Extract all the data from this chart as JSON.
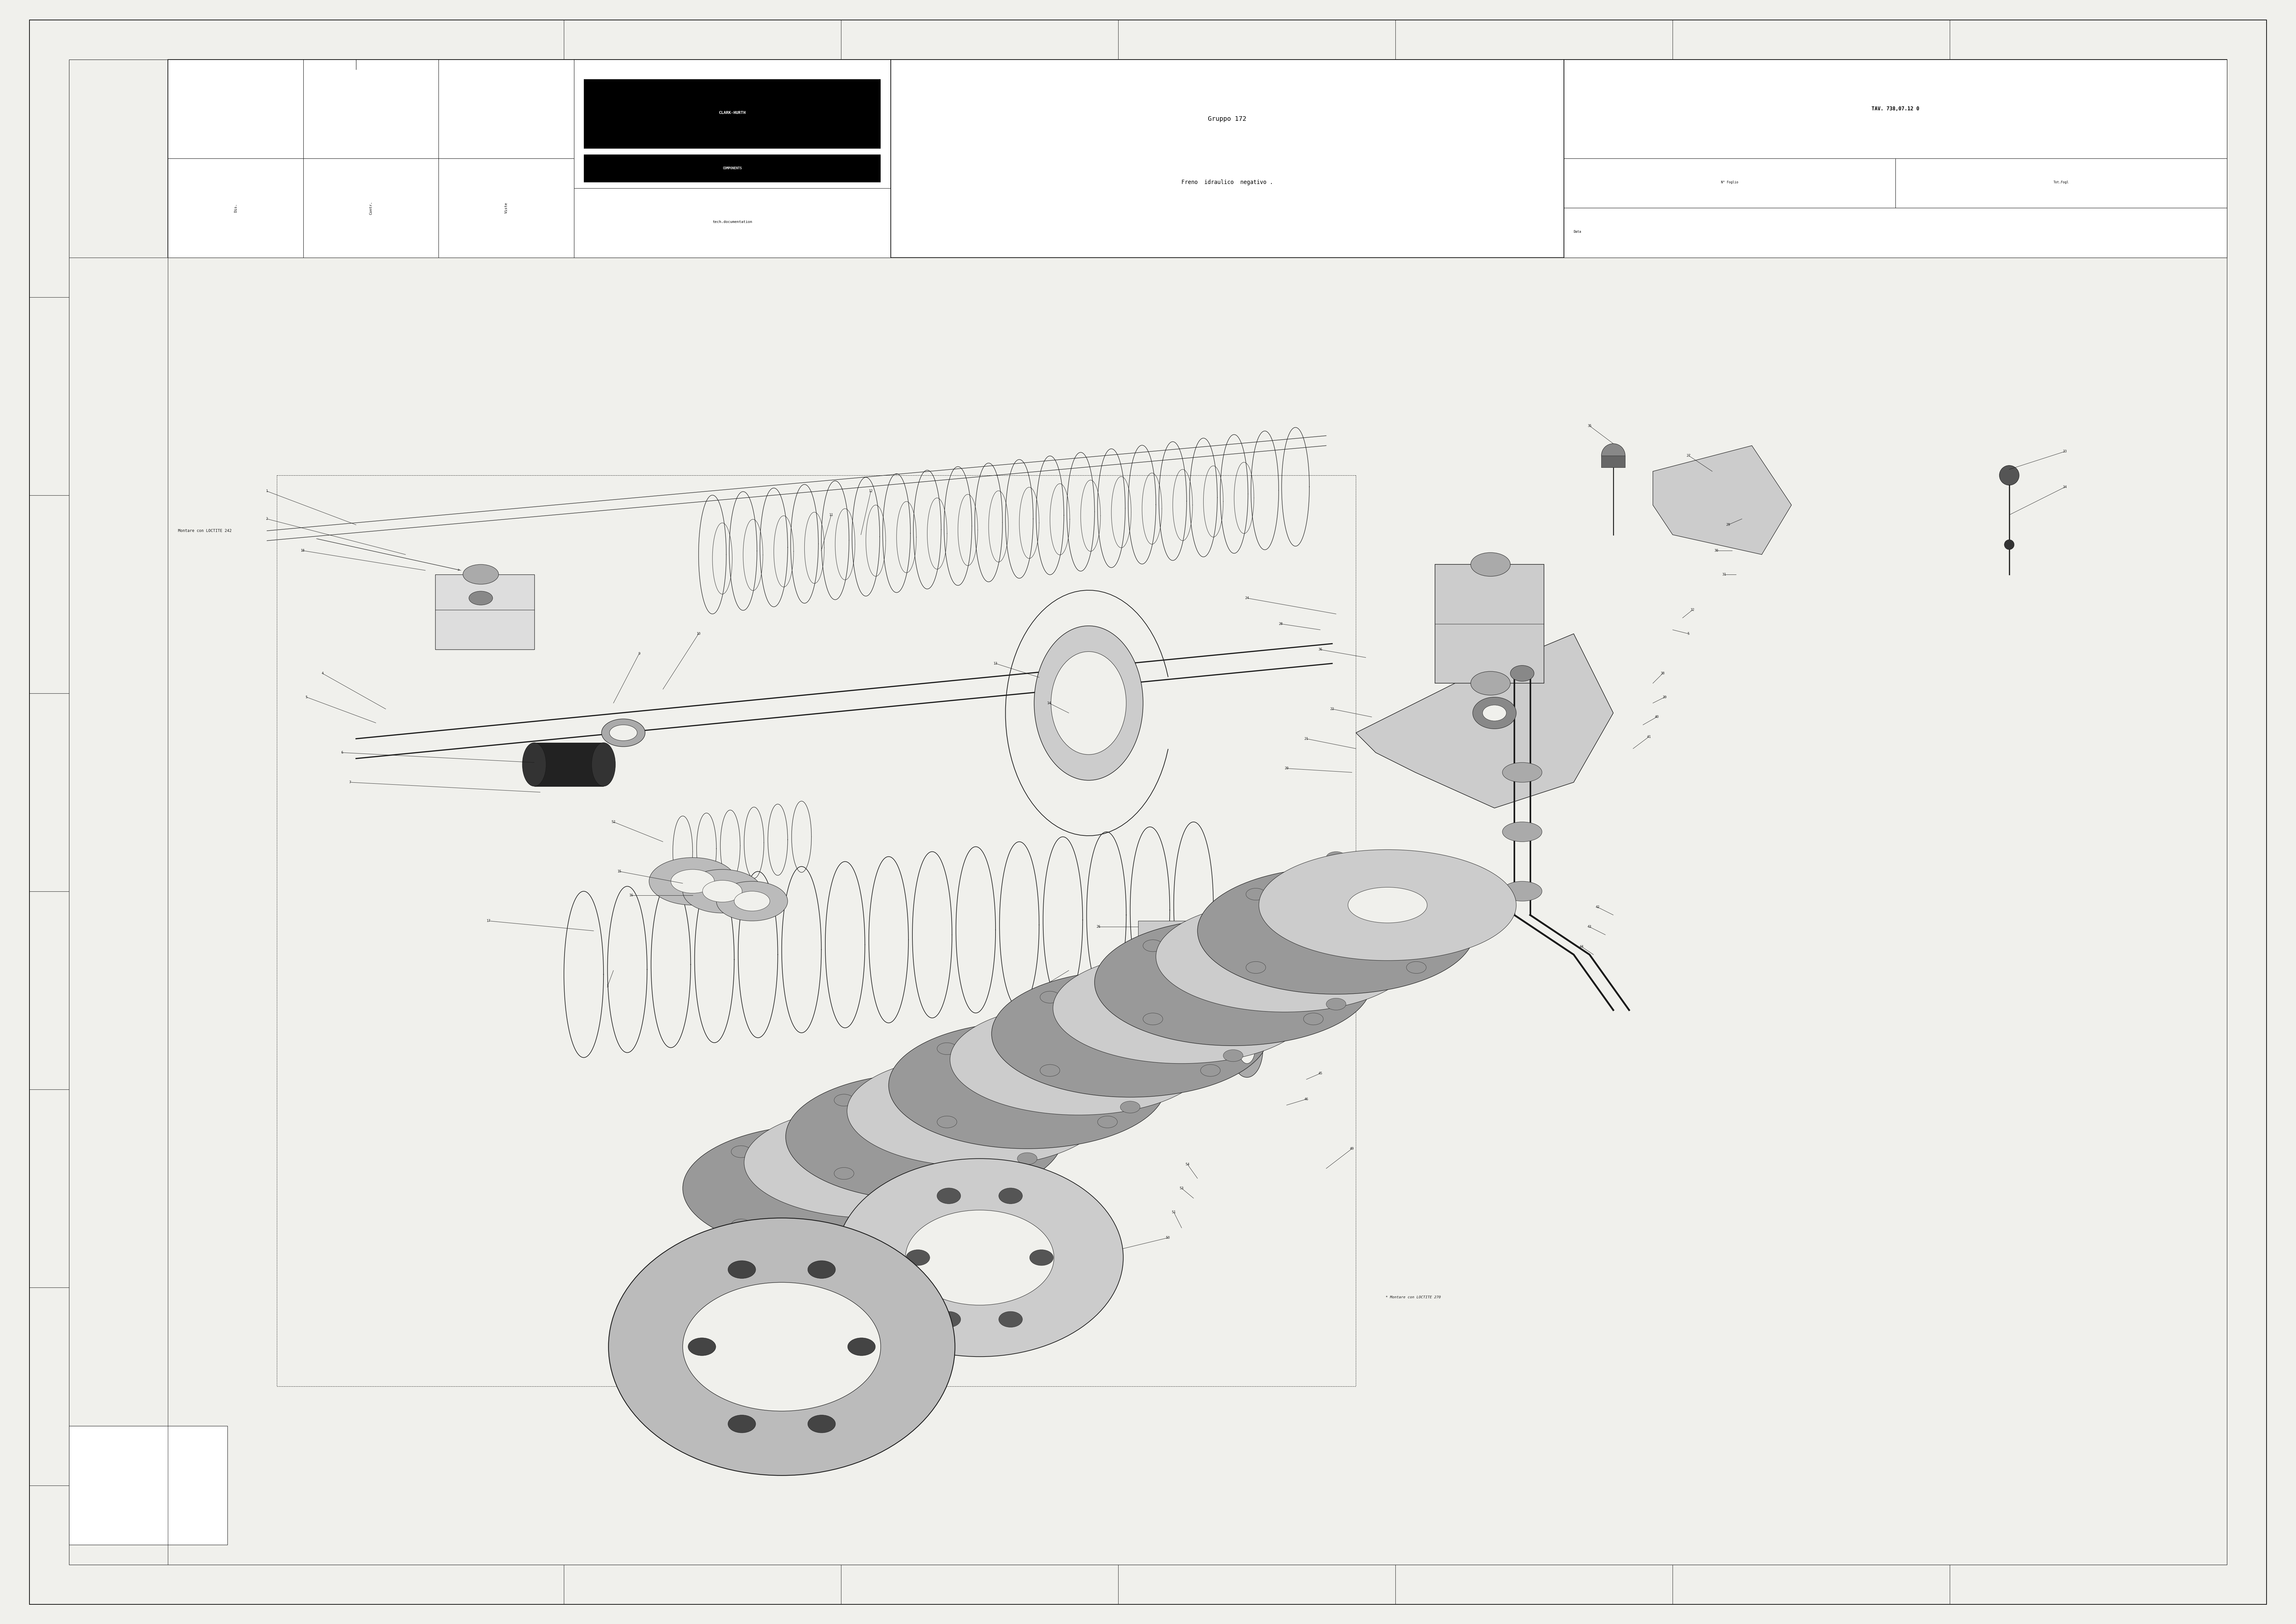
{
  "title_group": "Gruppo 172",
  "title_sub": "Freno  idraulico  negativo .",
  "tav": "TAV. 738,07.12 0",
  "n_foglio_label": "N° Foglio",
  "tot_fogli_label": "Tot.Fogl",
  "data_label": "Data",
  "company_label": "CLARK-HURTH",
  "tech_doc": "tech.documentation",
  "dis_label": "Dis.",
  "contr_label": "Contr.",
  "viste_label": "Viste",
  "annotation1": "Montare con LOCTITE 242",
  "annotation2": "* Montare con LOCTITE 270",
  "bg_color": "#f0f0ec",
  "line_color": "#1a1a1a",
  "border_color": "#000000",
  "figsize": [
    70.16,
    49.61
  ],
  "dpi": 100
}
